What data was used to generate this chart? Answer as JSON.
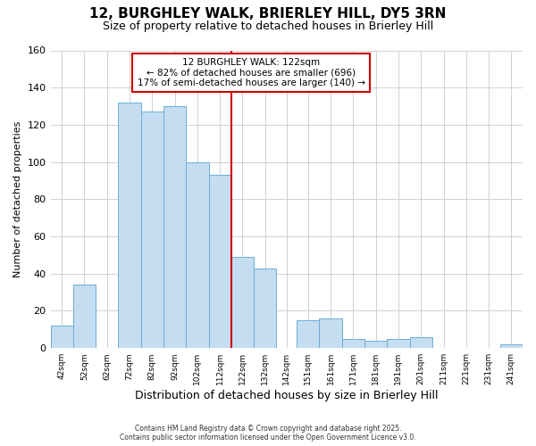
{
  "title": "12, BURGHLEY WALK, BRIERLEY HILL, DY5 3RN",
  "subtitle": "Size of property relative to detached houses in Brierley Hill",
  "xlabel": "Distribution of detached houses by size in Brierley Hill",
  "ylabel": "Number of detached properties",
  "bar_lefts": [
    42,
    52,
    62,
    72,
    82,
    92,
    102,
    112,
    122,
    132,
    142,
    151,
    161,
    171,
    181,
    191,
    201,
    211,
    221,
    231,
    241
  ],
  "bar_widths": [
    10,
    10,
    10,
    10,
    10,
    10,
    10,
    10,
    10,
    10,
    9,
    10,
    10,
    10,
    10,
    10,
    10,
    10,
    10,
    10,
    10
  ],
  "bar_heights": [
    12,
    34,
    0,
    132,
    127,
    130,
    100,
    93,
    49,
    43,
    0,
    15,
    16,
    5,
    4,
    5,
    6,
    0,
    0,
    0,
    2
  ],
  "bar_color": "#c5ddf0",
  "bar_edgecolor": "#6aaed6",
  "marker_x": 122,
  "marker_color": "#cc0000",
  "ylim": [
    0,
    160
  ],
  "xlim": [
    42,
    251
  ],
  "yticks": [
    0,
    20,
    40,
    60,
    80,
    100,
    120,
    140,
    160
  ],
  "annotation_title": "12 BURGHLEY WALK: 122sqm",
  "annotation_line1": "← 82% of detached houses are smaller (696)",
  "annotation_line2": "17% of semi-detached houses are larger (140) →",
  "footnote1": "Contains HM Land Registry data © Crown copyright and database right 2025.",
  "footnote2": "Contains public sector information licensed under the Open Government Licence v3.0.",
  "grid_color": "#d0d0d0",
  "title_fontsize": 11,
  "subtitle_fontsize": 9,
  "xlabel_fontsize": 9,
  "ylabel_fontsize": 8,
  "tick_labels": [
    "42sqm",
    "52sqm",
    "62sqm",
    "72sqm",
    "82sqm",
    "92sqm",
    "102sqm",
    "112sqm",
    "122sqm",
    "132sqm",
    "142sqm",
    "151sqm",
    "161sqm",
    "171sqm",
    "181sqm",
    "191sqm",
    "201sqm",
    "211sqm",
    "221sqm",
    "231sqm",
    "241sqm"
  ]
}
